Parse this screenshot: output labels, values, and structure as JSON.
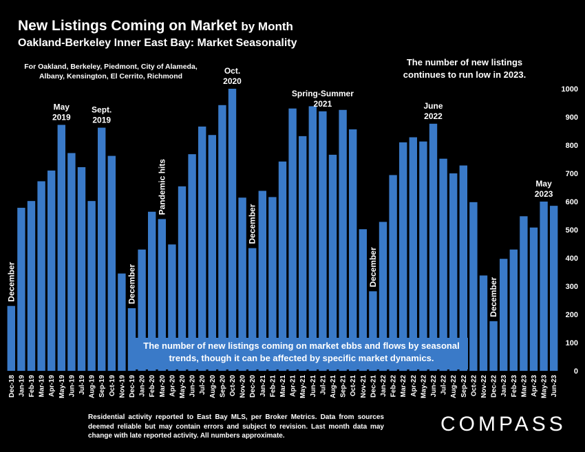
{
  "chart_data": {
    "type": "bar",
    "title_main": "New Listings Coming on Market",
    "title_suffix": "by Month",
    "subtitle": "Oakland-Berkeley Inner East Bay: Market Seasonality",
    "areas_note": "For Oakland, Berkeley, Piedmont, City of Alameda, Albany, Kensington, El Cerrito, Richmond",
    "top_note": "The number of new listings continues to run low in 2023.",
    "callout": "The number of new listings coming on market ebbs and flows by seasonal trends, though it can be affected by specific market dynamics.",
    "categories": [
      "Dec-18",
      "Jan-19",
      "Feb-19",
      "Mar-19",
      "Apr-19",
      "May-19",
      "Jun-19",
      "Jul-19",
      "Aug-19",
      "Sep-19",
      "Oct-19",
      "Nov-19",
      "Dec-19",
      "Jan-20",
      "Feb-20",
      "Mar-20",
      "Apr-20",
      "May-20",
      "Jun-20",
      "Jul-20",
      "Aug-20",
      "Sep-20",
      "Oct-20",
      "Nov-20",
      "Dec-20",
      "Jan-21",
      "Feb-21",
      "Mar-21",
      "Apr-21",
      "May-21",
      "Jun-21",
      "Jul-21",
      "Aug-21",
      "Sep-21",
      "Oct-21",
      "Nov-21",
      "Dec-21",
      "Jan-22",
      "Feb-22",
      "Mar-22",
      "Apr-22",
      "May-22",
      "Jun-22",
      "Jul-22",
      "Aug-22",
      "Sep-22",
      "Oct-22",
      "Nov-22",
      "Dec-22",
      "Jan-23",
      "Feb-23",
      "Mar-23",
      "Apr-23",
      "May-23",
      "Jun-23"
    ],
    "values": [
      230,
      578,
      602,
      672,
      710,
      872,
      772,
      722,
      602,
      862,
      762,
      345,
      222,
      430,
      564,
      538,
      448,
      654,
      768,
      866,
      836,
      942,
      1000,
      614,
      435,
      638,
      616,
      742,
      930,
      832,
      938,
      920,
      766,
      925,
      856,
      502,
      282,
      528,
      694,
      810,
      828,
      813,
      876,
      752,
      700,
      728,
      598,
      338,
      176,
      397,
      430,
      548,
      508,
      600,
      585
    ],
    "ylim": [
      0,
      1000
    ],
    "yticks": [
      0,
      100,
      200,
      300,
      400,
      500,
      600,
      700,
      800,
      900,
      1000
    ],
    "bar_color": "#3a7ac8",
    "annotations": [
      {
        "index": 0,
        "text": "December",
        "rotated": true
      },
      {
        "index": 5,
        "text": "May 2019",
        "rotated": false
      },
      {
        "index": 9,
        "text": "Sept. 2019",
        "rotated": false
      },
      {
        "index": 12,
        "text": "December",
        "rotated": true
      },
      {
        "index": 15,
        "text": "Pandemic hits",
        "rotated": true
      },
      {
        "index": 22,
        "text": "Oct. 2020",
        "rotated": false
      },
      {
        "index": 24,
        "text": "December",
        "rotated": true
      },
      {
        "index": 31,
        "text": "Spring-Summer 2021",
        "rotated": false
      },
      {
        "index": 36,
        "text": "December",
        "rotated": true
      },
      {
        "index": 42,
        "text": "June 2022",
        "rotated": false
      },
      {
        "index": 48,
        "text": "December",
        "rotated": true
      },
      {
        "index": 53,
        "text": "May 2023",
        "rotated": false
      }
    ]
  },
  "footer": {
    "disclaimer": "Residential activity reported to East Bay MLS, per Broker Metrics. Data from sources deemed reliable but may contain errors and subject to revision. Last month data may change with late reported activity. All numbers approximate.",
    "logo": "COMPASS"
  }
}
